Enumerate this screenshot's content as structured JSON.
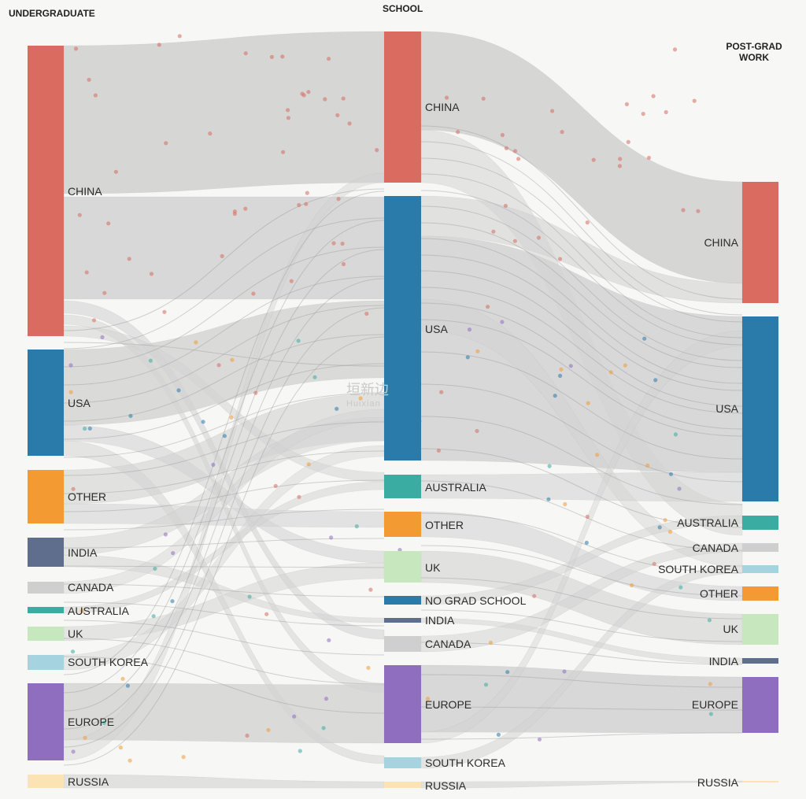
{
  "columns": {
    "left": "UNDERGRADUATE",
    "middle": "SCHOOL",
    "right_line1": "POST-GRAD",
    "right_line2": "WORK"
  },
  "watermark": {
    "main": "垣新边",
    "sub": "Huixian"
  },
  "colors": {
    "china": "#d96b60",
    "usa": "#2a7aaa",
    "other": "#f39a32",
    "india": "#5e6e8c",
    "canada": "#cfcfcf",
    "australia": "#3aaca2",
    "uk": "#c7e7bf",
    "south_korea": "#a5d3df",
    "europe": "#8f6ebf",
    "russia": "#fbe3b3",
    "no_grad_school": "#2a7aaa",
    "link": "#d2d2d2"
  },
  "nodes": {
    "undergrad": [
      {
        "id": "u_china",
        "label": "CHINA",
        "color": "china"
      },
      {
        "id": "u_usa",
        "label": "USA",
        "color": "usa"
      },
      {
        "id": "u_other",
        "label": "OTHER",
        "color": "other"
      },
      {
        "id": "u_india",
        "label": "INDIA",
        "color": "india"
      },
      {
        "id": "u_canada",
        "label": "CANADA",
        "color": "canada"
      },
      {
        "id": "u_australia",
        "label": "AUSTRALIA",
        "color": "australia"
      },
      {
        "id": "u_uk",
        "label": "UK",
        "color": "uk"
      },
      {
        "id": "u_skorea",
        "label": "SOUTH KOREA",
        "color": "south_korea"
      },
      {
        "id": "u_europe",
        "label": "EUROPE",
        "color": "europe"
      },
      {
        "id": "u_russia",
        "label": "RUSSIA",
        "color": "russia"
      }
    ],
    "school": [
      {
        "id": "s_china",
        "label": "CHINA",
        "color": "china"
      },
      {
        "id": "s_usa",
        "label": "USA",
        "color": "usa"
      },
      {
        "id": "s_australia",
        "label": "AUSTRALIA",
        "color": "australia"
      },
      {
        "id": "s_other",
        "label": "OTHER",
        "color": "other"
      },
      {
        "id": "s_uk",
        "label": "UK",
        "color": "uk"
      },
      {
        "id": "s_nograd",
        "label": "NO GRAD SCHOOL",
        "color": "no_grad_school"
      },
      {
        "id": "s_india",
        "label": "INDIA",
        "color": "india"
      },
      {
        "id": "s_canada",
        "label": "CANADA",
        "color": "canada"
      },
      {
        "id": "s_europe",
        "label": "EUROPE",
        "color": "europe"
      },
      {
        "id": "s_skorea",
        "label": "SOUTH KOREA",
        "color": "south_korea"
      },
      {
        "id": "s_russia",
        "label": "RUSSIA",
        "color": "russia"
      }
    ],
    "work": [
      {
        "id": "w_china",
        "label": "CHINA",
        "color": "china"
      },
      {
        "id": "w_usa",
        "label": "USA",
        "color": "usa"
      },
      {
        "id": "w_australia",
        "label": "AUSTRALIA",
        "color": "australia"
      },
      {
        "id": "w_canada",
        "label": "CANADA",
        "color": "canada"
      },
      {
        "id": "w_skorea",
        "label": "SOUTH KOREA",
        "color": "south_korea"
      },
      {
        "id": "w_other",
        "label": "OTHER",
        "color": "other"
      },
      {
        "id": "w_uk",
        "label": "UK",
        "color": "uk"
      },
      {
        "id": "w_india",
        "label": "INDIA",
        "color": "india"
      },
      {
        "id": "w_europe",
        "label": "EUROPE",
        "color": "europe"
      },
      {
        "id": "w_russia",
        "label": "RUSSIA",
        "color": "russia"
      }
    ]
  }
}
